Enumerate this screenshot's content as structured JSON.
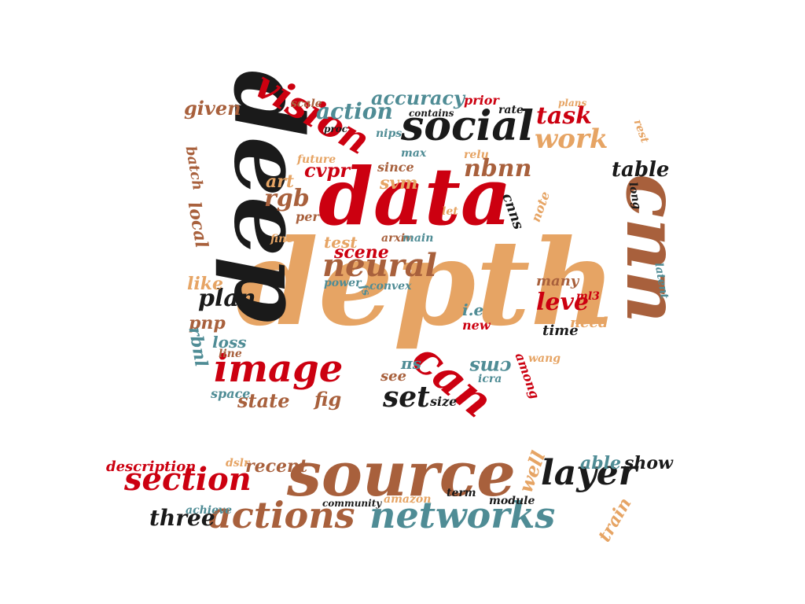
{
  "palette": {
    "background": "#ffffff",
    "tan": "#e6a464",
    "red": "#cc0010",
    "black": "#1a1a1a",
    "brown": "#a8603c",
    "teal": "#4f8c95"
  },
  "words": [
    {
      "text": "depth",
      "color": "tan"
    },
    {
      "text": "data",
      "color": "red"
    },
    {
      "text": "deep",
      "color": "black"
    },
    {
      "text": "source",
      "color": "brown"
    },
    {
      "text": "social",
      "color": "black"
    },
    {
      "text": "cnn",
      "color": "brown"
    },
    {
      "text": "vision",
      "color": "red"
    },
    {
      "text": "image",
      "color": "red"
    },
    {
      "text": "neural",
      "color": "brown"
    },
    {
      "text": "networks",
      "color": "teal"
    },
    {
      "text": "actions",
      "color": "brown"
    },
    {
      "text": "section",
      "color": "red"
    },
    {
      "text": "layer",
      "color": "black"
    },
    {
      "text": "can",
      "color": "red"
    },
    {
      "text": "work",
      "color": "tan"
    },
    {
      "text": "action",
      "color": "teal"
    },
    {
      "text": "task",
      "color": "red"
    },
    {
      "text": "accuracy",
      "color": "teal"
    },
    {
      "text": "given",
      "color": "brown"
    },
    {
      "text": "table",
      "color": "black"
    },
    {
      "text": "nbnn",
      "color": "brown"
    },
    {
      "text": "rgb",
      "color": "brown"
    },
    {
      "text": "art",
      "color": "tan"
    },
    {
      "text": "cvpr",
      "color": "red"
    },
    {
      "text": "svm",
      "color": "tan"
    },
    {
      "text": "since",
      "color": "brown"
    },
    {
      "text": "plan",
      "color": "black"
    },
    {
      "text": "scene",
      "color": "red"
    },
    {
      "text": "leve",
      "color": "red"
    },
    {
      "text": "set",
      "color": "black"
    },
    {
      "text": "see",
      "color": "brown"
    },
    {
      "text": "state",
      "color": "brown"
    },
    {
      "text": "fig",
      "color": "brown"
    },
    {
      "text": "three",
      "color": "black"
    },
    {
      "text": "able",
      "color": "teal"
    },
    {
      "text": "show",
      "color": "black"
    },
    {
      "text": "description",
      "color": "red"
    },
    {
      "text": "recent",
      "color": "brown"
    },
    {
      "text": "well",
      "color": "tan"
    },
    {
      "text": "train",
      "color": "tan"
    },
    {
      "text": "community",
      "color": "black"
    },
    {
      "text": "term",
      "color": "black"
    },
    {
      "text": "amazon",
      "color": "tan"
    },
    {
      "text": "module",
      "color": "black"
    },
    {
      "text": "achieve",
      "color": "teal"
    },
    {
      "text": "dslr",
      "color": "tan"
    },
    {
      "text": "scale",
      "color": "brown"
    },
    {
      "text": "prior",
      "color": "red"
    },
    {
      "text": "rate",
      "color": "black"
    },
    {
      "text": "plans",
      "color": "tan"
    },
    {
      "text": "contains",
      "color": "black"
    },
    {
      "text": "proc",
      "color": "black"
    },
    {
      "text": "nips",
      "color": "teal"
    },
    {
      "text": "max",
      "color": "teal"
    },
    {
      "text": "relu",
      "color": "tan"
    },
    {
      "text": "future",
      "color": "tan"
    },
    {
      "text": "rest",
      "color": "tan"
    },
    {
      "text": "batch",
      "color": "brown"
    },
    {
      "text": "local",
      "color": "brown"
    },
    {
      "text": "long",
      "color": "black"
    },
    {
      "text": "cnns",
      "color": "black"
    },
    {
      "text": "note",
      "color": "tan"
    },
    {
      "text": "let",
      "color": "tan"
    },
    {
      "text": "per",
      "color": "brown"
    },
    {
      "text": "fine",
      "color": "tan"
    },
    {
      "text": "test",
      "color": "tan"
    },
    {
      "text": "arxiv",
      "color": "brown"
    },
    {
      "text": "main",
      "color": "teal"
    },
    {
      "text": "like",
      "color": "tan"
    },
    {
      "text": "power",
      "color": "teal"
    },
    {
      "text": "convex",
      "color": "teal"
    },
    {
      "text": "many",
      "color": "brown"
    },
    {
      "text": "latent",
      "color": "teal"
    },
    {
      "text": "ml3",
      "color": "red"
    },
    {
      "text": "pnp",
      "color": "brown"
    },
    {
      "text": "i.e",
      "color": "teal"
    },
    {
      "text": "new",
      "color": "red"
    },
    {
      "text": "need",
      "color": "tan"
    },
    {
      "text": "time",
      "color": "black"
    },
    {
      "text": "rbnl",
      "color": "teal"
    },
    {
      "text": "loss",
      "color": "teal"
    },
    {
      "text": "line",
      "color": "brown"
    },
    {
      "text": "πs",
      "color": "teal"
    },
    {
      "text": "cms",
      "color": "teal"
    },
    {
      "text": "wang",
      "color": "tan"
    },
    {
      "text": "icra",
      "color": "teal"
    },
    {
      "text": "among",
      "color": "red"
    },
    {
      "text": "space",
      "color": "teal"
    },
    {
      "text": "size",
      "color": "black"
    },
    {
      "text": "fs",
      "color": "teal"
    }
  ]
}
